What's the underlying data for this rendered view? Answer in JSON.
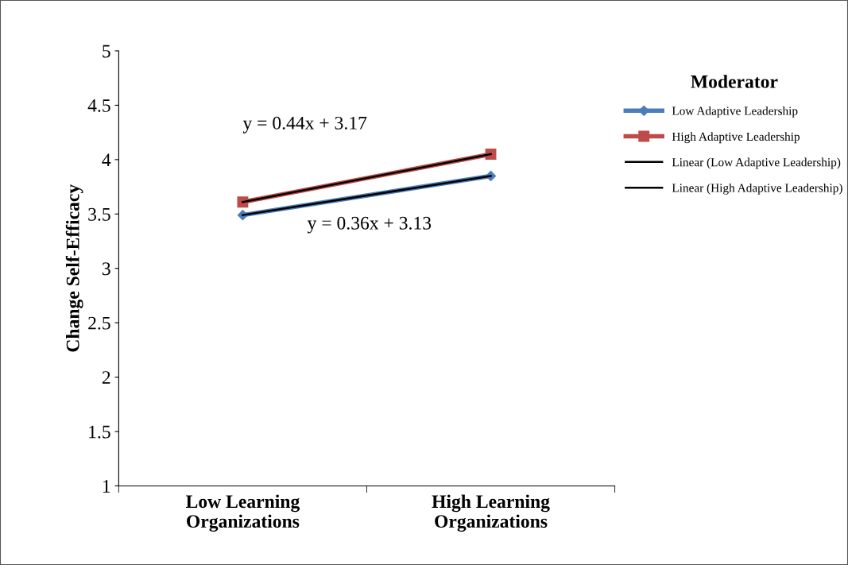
{
  "chart_data": {
    "type": "line",
    "ylabel": "Change Self-Efficacy",
    "legend_title": "Moderator",
    "categories": [
      "Low Learning\nOrganizations",
      "High Learning\nOrganizations"
    ],
    "series": [
      {
        "name": "Low Adaptive Leadership",
        "color": "#4a7ebb",
        "values": [
          3.49,
          3.85
        ],
        "marker": "diamond"
      },
      {
        "name": "High Adaptive Leadership",
        "color": "#be4b48",
        "values": [
          3.61,
          4.05
        ],
        "marker": "square"
      },
      {
        "name": "Linear (Low Adaptive Leadership)",
        "color": "#000000",
        "values": [
          3.49,
          3.85
        ],
        "marker": "none"
      },
      {
        "name": "Linear (High Adaptive Leadership)",
        "color": "#000000",
        "values": [
          3.61,
          4.05
        ],
        "marker": "none"
      }
    ],
    "ylim": [
      1,
      5
    ],
    "yticks": [
      1,
      1.5,
      2,
      2.5,
      3,
      3.5,
      4,
      4.5,
      5
    ],
    "annotations": [
      "y = 0.44x + 3.17",
      "y = 0.36x + 3.13"
    ],
    "grid": false,
    "legend": "right"
  }
}
